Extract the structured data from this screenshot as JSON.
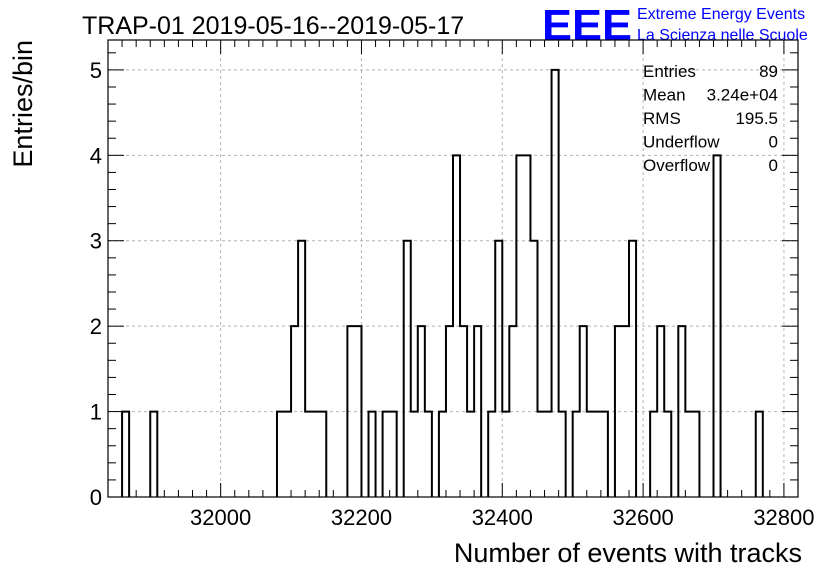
{
  "title": "TRAP-01 2019-05-16--2019-05-17",
  "logo": {
    "mark": "EEE",
    "line1": "Extreme Energy Events",
    "line2": "La Scienza nelle Scuole"
  },
  "stats": [
    {
      "name": "Entries",
      "value": "89"
    },
    {
      "name": "Mean",
      "value": "3.24e+04"
    },
    {
      "name": "RMS",
      "value": "195.5"
    },
    {
      "name": "Underflow",
      "value": "0"
    },
    {
      "name": "Overflow",
      "value": "0"
    }
  ],
  "chart_data": {
    "type": "histogram",
    "xlabel": "Number of events with tracks",
    "ylabel": "Entries/bin",
    "xlim": [
      31840,
      32820
    ],
    "ylim": [
      0,
      5.35
    ],
    "bin_width": 10,
    "xticks": [
      32000,
      32200,
      32400,
      32600,
      32800
    ],
    "yticks": [
      0,
      1,
      2,
      3,
      4,
      5
    ],
    "grid": true,
    "line_color": "#000000",
    "bins": [
      {
        "x0": 31860,
        "x1": 31870,
        "count": 1
      },
      {
        "x0": 31900,
        "x1": 31910,
        "count": 1
      },
      {
        "x0": 32080,
        "x1": 32100,
        "count": 1
      },
      {
        "x0": 32100,
        "x1": 32110,
        "count": 2
      },
      {
        "x0": 32110,
        "x1": 32120,
        "count": 3
      },
      {
        "x0": 32120,
        "x1": 32150,
        "count": 1
      },
      {
        "x0": 32180,
        "x1": 32200,
        "count": 2
      },
      {
        "x0": 32210,
        "x1": 32220,
        "count": 1
      },
      {
        "x0": 32230,
        "x1": 32250,
        "count": 1
      },
      {
        "x0": 32260,
        "x1": 32270,
        "count": 3
      },
      {
        "x0": 32270,
        "x1": 32280,
        "count": 1
      },
      {
        "x0": 32280,
        "x1": 32290,
        "count": 2
      },
      {
        "x0": 32290,
        "x1": 32300,
        "count": 1
      },
      {
        "x0": 32310,
        "x1": 32320,
        "count": 1
      },
      {
        "x0": 32320,
        "x1": 32330,
        "count": 2
      },
      {
        "x0": 32330,
        "x1": 32340,
        "count": 4
      },
      {
        "x0": 32340,
        "x1": 32350,
        "count": 2
      },
      {
        "x0": 32350,
        "x1": 32360,
        "count": 1
      },
      {
        "x0": 32360,
        "x1": 32370,
        "count": 2
      },
      {
        "x0": 32380,
        "x1": 32390,
        "count": 1
      },
      {
        "x0": 32390,
        "x1": 32400,
        "count": 3
      },
      {
        "x0": 32400,
        "x1": 32410,
        "count": 1
      },
      {
        "x0": 32410,
        "x1": 32420,
        "count": 2
      },
      {
        "x0": 32420,
        "x1": 32440,
        "count": 4
      },
      {
        "x0": 32440,
        "x1": 32450,
        "count": 3
      },
      {
        "x0": 32450,
        "x1": 32470,
        "count": 1
      },
      {
        "x0": 32470,
        "x1": 32480,
        "count": 5
      },
      {
        "x0": 32480,
        "x1": 32490,
        "count": 1
      },
      {
        "x0": 32500,
        "x1": 32510,
        "count": 1
      },
      {
        "x0": 32510,
        "x1": 32520,
        "count": 2
      },
      {
        "x0": 32520,
        "x1": 32550,
        "count": 1
      },
      {
        "x0": 32560,
        "x1": 32580,
        "count": 2
      },
      {
        "x0": 32580,
        "x1": 32590,
        "count": 3
      },
      {
        "x0": 32610,
        "x1": 32620,
        "count": 1
      },
      {
        "x0": 32620,
        "x1": 32630,
        "count": 2
      },
      {
        "x0": 32630,
        "x1": 32640,
        "count": 1
      },
      {
        "x0": 32650,
        "x1": 32660,
        "count": 2
      },
      {
        "x0": 32660,
        "x1": 32680,
        "count": 1
      },
      {
        "x0": 32700,
        "x1": 32710,
        "count": 4
      },
      {
        "x0": 32760,
        "x1": 32770,
        "count": 1
      }
    ]
  }
}
